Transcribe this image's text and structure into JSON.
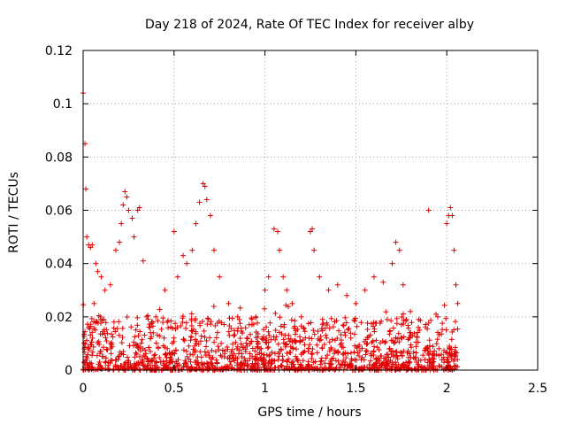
{
  "chart_data": {
    "type": "scatter",
    "title": "Day 218 of 2024, Rate Of TEC Index for receiver alby",
    "xlabel": "GPS time / hours",
    "ylabel": "ROTI / TECUs",
    "xlim": [
      0,
      2.5
    ],
    "ylim": [
      0,
      0.12
    ],
    "xticks": [
      0,
      0.5,
      1,
      1.5,
      2,
      2.5
    ],
    "xtick_labels": [
      "0",
      "0.5",
      "1",
      "1.5",
      "2",
      "2.5"
    ],
    "yticks": [
      0,
      0.02,
      0.04,
      0.06,
      0.08,
      0.1,
      0.12
    ],
    "ytick_labels": [
      "0",
      "0.02",
      "0.04",
      "0.06",
      "0.08",
      "0.1",
      "0.12"
    ],
    "grid": true,
    "marker": "+",
    "color": "#e00000",
    "series": [
      {
        "name": "ROTI",
        "points": [
          [
            0.0,
            0.104
          ],
          [
            0.01,
            0.085
          ],
          [
            0.015,
            0.068
          ],
          [
            0.02,
            0.05
          ],
          [
            0.03,
            0.047
          ],
          [
            0.04,
            0.046
          ],
          [
            0.05,
            0.047
          ],
          [
            0.06,
            0.025
          ],
          [
            0.07,
            0.04
          ],
          [
            0.08,
            0.037
          ],
          [
            0.1,
            0.035
          ],
          [
            0.12,
            0.03
          ],
          [
            0.15,
            0.032
          ],
          [
            0.18,
            0.045
          ],
          [
            0.2,
            0.048
          ],
          [
            0.21,
            0.055
          ],
          [
            0.22,
            0.062
          ],
          [
            0.23,
            0.067
          ],
          [
            0.24,
            0.065
          ],
          [
            0.25,
            0.06
          ],
          [
            0.27,
            0.057
          ],
          [
            0.28,
            0.05
          ],
          [
            0.3,
            0.06
          ],
          [
            0.31,
            0.061
          ],
          [
            0.33,
            0.041
          ],
          [
            0.35,
            0.02
          ],
          [
            0.4,
            0.02
          ],
          [
            0.45,
            0.03
          ],
          [
            0.5,
            0.052
          ],
          [
            0.52,
            0.035
          ],
          [
            0.55,
            0.043
          ],
          [
            0.57,
            0.04
          ],
          [
            0.6,
            0.045
          ],
          [
            0.62,
            0.055
          ],
          [
            0.64,
            0.063
          ],
          [
            0.66,
            0.07
          ],
          [
            0.67,
            0.069
          ],
          [
            0.68,
            0.064
          ],
          [
            0.7,
            0.058
          ],
          [
            0.72,
            0.045
          ],
          [
            0.75,
            0.035
          ],
          [
            0.8,
            0.025
          ],
          [
            0.85,
            0.02
          ],
          [
            0.9,
            0.012
          ],
          [
            0.95,
            0.02
          ],
          [
            1.0,
            0.03
          ],
          [
            1.02,
            0.035
          ],
          [
            1.05,
            0.053
          ],
          [
            1.07,
            0.052
          ],
          [
            1.08,
            0.045
          ],
          [
            1.1,
            0.035
          ],
          [
            1.12,
            0.03
          ],
          [
            1.15,
            0.025
          ],
          [
            1.2,
            0.02
          ],
          [
            1.25,
            0.052
          ],
          [
            1.26,
            0.053
          ],
          [
            1.27,
            0.045
          ],
          [
            1.3,
            0.035
          ],
          [
            1.35,
            0.03
          ],
          [
            1.4,
            0.032
          ],
          [
            1.45,
            0.028
          ],
          [
            1.5,
            0.025
          ],
          [
            1.55,
            0.03
          ],
          [
            1.6,
            0.035
          ],
          [
            1.65,
            0.033
          ],
          [
            1.7,
            0.04
          ],
          [
            1.72,
            0.048
          ],
          [
            1.74,
            0.045
          ],
          [
            1.76,
            0.032
          ],
          [
            1.8,
            0.022
          ],
          [
            1.85,
            0.015
          ],
          [
            1.9,
            0.06
          ],
          [
            1.95,
            0.02
          ],
          [
            2.0,
            0.055
          ],
          [
            2.01,
            0.058
          ],
          [
            2.02,
            0.061
          ],
          [
            2.03,
            0.058
          ],
          [
            2.04,
            0.045
          ],
          [
            2.05,
            0.032
          ],
          [
            2.06,
            0.025
          ]
        ]
      }
    ],
    "baseline_band": {
      "x_start": 0,
      "x_end": 2.06,
      "y_min": 0.0,
      "y_max": 0.02,
      "density": "dense"
    }
  }
}
